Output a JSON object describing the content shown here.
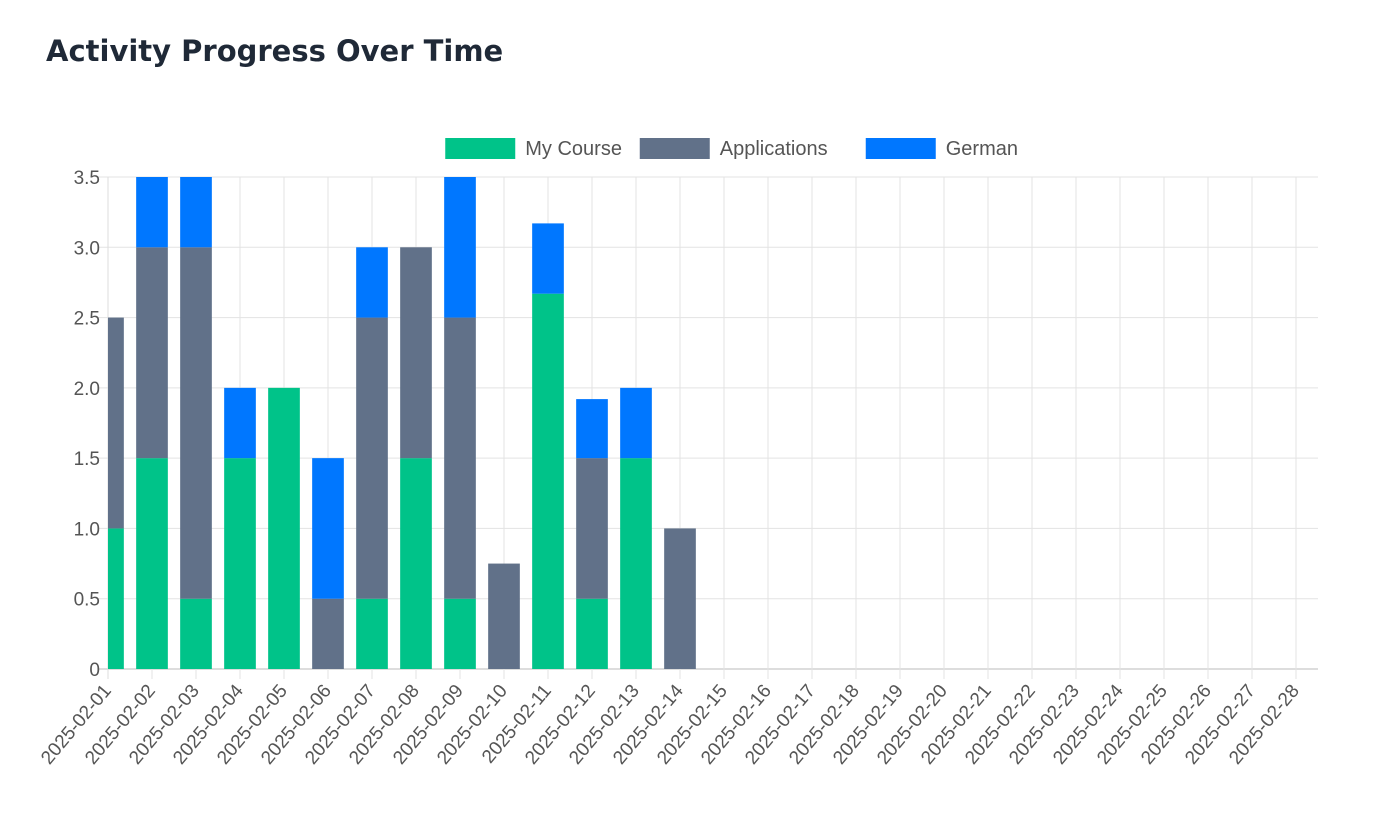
{
  "page": {
    "title": "Activity Progress Over Time"
  },
  "chart_data": {
    "type": "bar",
    "stacked": true,
    "categories": [
      "2025-02-01",
      "2025-02-02",
      "2025-02-03",
      "2025-02-04",
      "2025-02-05",
      "2025-02-06",
      "2025-02-07",
      "2025-02-08",
      "2025-02-09",
      "2025-02-10",
      "2025-02-11",
      "2025-02-12",
      "2025-02-13",
      "2025-02-14",
      "2025-02-15",
      "2025-02-16",
      "2025-02-17",
      "2025-02-18",
      "2025-02-19",
      "2025-02-20",
      "2025-02-21",
      "2025-02-22",
      "2025-02-23",
      "2025-02-24",
      "2025-02-25",
      "2025-02-26",
      "2025-02-27",
      "2025-02-28"
    ],
    "series": [
      {
        "name": "My Course",
        "color": "#00c389",
        "values": [
          1,
          1.5,
          0.5,
          1.5,
          2,
          0,
          0.5,
          1.5,
          0.5,
          0,
          2.67,
          0.5,
          1.5,
          0,
          0,
          0,
          0,
          0,
          0,
          0,
          0,
          0,
          0,
          0,
          0,
          0,
          0,
          0
        ]
      },
      {
        "name": "Applications",
        "color": "#617189",
        "values": [
          1.5,
          1.5,
          2.5,
          0,
          0,
          0.5,
          2,
          1.5,
          2,
          0.75,
          0,
          1,
          0,
          1,
          0,
          0,
          0,
          0,
          0,
          0,
          0,
          0,
          0,
          0,
          0,
          0,
          0,
          0
        ]
      },
      {
        "name": "German",
        "color": "#0077ff",
        "values": [
          0,
          0.5,
          0.5,
          0.5,
          0,
          1,
          0.5,
          0,
          1,
          0,
          0.5,
          0.42,
          0.5,
          0,
          0,
          0,
          0,
          0,
          0,
          0,
          0,
          0,
          0,
          0,
          0,
          0,
          0,
          0
        ]
      }
    ],
    "y_ticks": [
      "0",
      "0.5",
      "1.0",
      "1.5",
      "2.0",
      "2.5",
      "3.0",
      "3.5"
    ],
    "ylim": [
      0,
      3.5
    ],
    "grid": true,
    "legend_position": "top"
  }
}
